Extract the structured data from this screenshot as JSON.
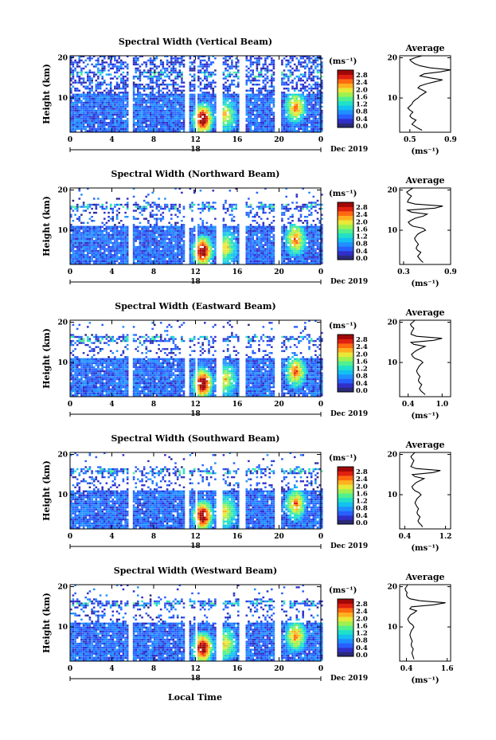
{
  "colors": {
    "palette": [
      "#2a2a7a",
      "#3030c8",
      "#2860ff",
      "#1f90ff",
      "#13c0f0",
      "#20e0c8",
      "#50f090",
      "#a0f050",
      "#e8e838",
      "#ffb020",
      "#ff6a10",
      "#e02010",
      "#a00808"
    ]
  },
  "figure": {
    "xlabel": "Local Time",
    "date_label": "Dec 2019",
    "day_label": "18",
    "unit_label": "(ms⁻¹)",
    "ylabel": "Height (km)",
    "avg_title": "Average"
  },
  "chart_data": [
    {
      "type": "heatmap",
      "title": "Spectral Width (Vertical Beam)",
      "xlabel": "Local Time",
      "ylabel": "Height (km)",
      "x_ticks": [
        "0",
        "4",
        "8",
        "12",
        "16",
        "20",
        "0"
      ],
      "xlim": [
        0,
        24
      ],
      "ylim": [
        1.5,
        20.5
      ],
      "y_ticks": [
        "20",
        "10"
      ],
      "colorbar": {
        "label": "(ms⁻¹)",
        "ticks": [
          "2.8",
          "2.4",
          "2.0",
          "1.6",
          "1.2",
          "0.8",
          "0.4",
          "0.0"
        ],
        "range": [
          0,
          3.0
        ]
      },
      "data_gaps_hours": [
        [
          5.5,
          6.0
        ],
        [
          10.9,
          11.3
        ],
        [
          11.8,
          12.0
        ],
        [
          13.9,
          14.4
        ],
        [
          16.1,
          16.6
        ],
        [
          19.5,
          20.0
        ]
      ],
      "hotspots": [
        {
          "t": 12.6,
          "h": 4.5,
          "value": 2.8
        },
        {
          "t": 14.8,
          "h": 5.5,
          "value": 1.4
        },
        {
          "t": 21.5,
          "h": 7.5,
          "value": 1.8
        }
      ],
      "top_km": 20,
      "average": {
        "title": "Average",
        "xlabel": "(ms⁻¹)",
        "x_ticks": [
          "0.5",
          "0.9"
        ],
        "xlim": [
          0.4,
          0.9
        ],
        "y_ticks": [
          "20",
          "10"
        ],
        "x": [
          0.62,
          0.58,
          0.55,
          0.52,
          0.54,
          0.56,
          0.52,
          0.5,
          0.51,
          0.53,
          0.5,
          0.48,
          0.5,
          0.52,
          0.53,
          0.55,
          0.58,
          0.6,
          0.63,
          0.66,
          0.62,
          0.58,
          0.6,
          0.66,
          0.74,
          0.82,
          0.7,
          0.6,
          0.64,
          0.8,
          0.9,
          0.7,
          0.6,
          0.55,
          0.52,
          0.5,
          0.55,
          0.62
        ],
        "y": [
          2,
          2.5,
          3,
          3.5,
          4,
          4.5,
          5,
          5.5,
          6,
          6.5,
          7,
          7.5,
          8,
          8.5,
          9,
          9.5,
          10,
          10.5,
          11,
          11.5,
          12,
          12.5,
          13,
          13.5,
          14,
          14.5,
          15,
          15.5,
          16,
          16.5,
          17,
          17.5,
          18,
          18.5,
          19,
          19.5,
          20,
          20.5
        ]
      }
    },
    {
      "type": "heatmap",
      "title": "Spectral Width (Northward Beam)",
      "xlabel": "Local Time",
      "ylabel": "Height (km)",
      "x_ticks": [
        "0",
        "4",
        "8",
        "12",
        "16",
        "20",
        "0"
      ],
      "xlim": [
        0,
        24
      ],
      "ylim": [
        1.5,
        20.5
      ],
      "y_ticks": [
        "20",
        "10"
      ],
      "colorbar": {
        "label": "(ms⁻¹)",
        "ticks": [
          "2.8",
          "2.4",
          "2.0",
          "1.6",
          "1.2",
          "0.8",
          "0.4",
          "0.0"
        ],
        "range": [
          0,
          3.0
        ]
      },
      "data_gaps_hours": [
        [
          5.5,
          6.0
        ],
        [
          10.9,
          11.3
        ],
        [
          11.8,
          12.0
        ],
        [
          13.9,
          14.4
        ],
        [
          16.1,
          16.6
        ],
        [
          19.5,
          20.0
        ]
      ],
      "hotspots": [
        {
          "t": 12.6,
          "h": 4.5,
          "value": 2.8
        },
        {
          "t": 14.8,
          "h": 5.5,
          "value": 1.4
        },
        {
          "t": 21.5,
          "h": 7.5,
          "value": 1.8
        }
      ],
      "top_km": 17,
      "average": {
        "title": "Average",
        "xlabel": "(ms⁻¹)",
        "x_ticks": [
          "0.3",
          "0.9"
        ],
        "xlim": [
          0.25,
          0.9
        ],
        "y_ticks": [
          "20",
          "10"
        ],
        "x": [
          0.55,
          0.52,
          0.5,
          0.48,
          0.5,
          0.52,
          0.48,
          0.46,
          0.47,
          0.49,
          0.47,
          0.45,
          0.44,
          0.46,
          0.48,
          0.52,
          0.58,
          0.55,
          0.42,
          0.38,
          0.36,
          0.4,
          0.45,
          0.55,
          0.6,
          0.4,
          0.35,
          0.7,
          0.8,
          0.45,
          0.35,
          0.36,
          0.38,
          0.4,
          0.36,
          0.34,
          0.38,
          0.42
        ],
        "y": [
          2,
          2.5,
          3,
          3.5,
          4,
          4.5,
          5,
          5.5,
          6,
          6.5,
          7,
          7.5,
          8,
          8.5,
          9,
          9.5,
          10,
          10.5,
          11,
          11.5,
          12,
          12.5,
          13,
          13.5,
          14,
          14.5,
          15,
          15.5,
          16,
          16.5,
          17,
          17.5,
          18,
          18.5,
          19,
          19.5,
          20,
          20.5
        ]
      }
    },
    {
      "type": "heatmap",
      "title": "Spectral Width (Eastward Beam)",
      "xlabel": "Local Time",
      "ylabel": "Height (km)",
      "x_ticks": [
        "0",
        "4",
        "8",
        "12",
        "16",
        "20",
        "0"
      ],
      "xlim": [
        0,
        24
      ],
      "ylim": [
        1.5,
        20.5
      ],
      "y_ticks": [
        "20",
        "10"
      ],
      "colorbar": {
        "label": "(ms⁻¹)",
        "ticks": [
          "2.8",
          "2.4",
          "2.0",
          "1.6",
          "1.2",
          "0.8",
          "0.4",
          "0.0"
        ],
        "range": [
          0,
          3.0
        ]
      },
      "data_gaps_hours": [
        [
          5.5,
          6.0
        ],
        [
          10.9,
          11.3
        ],
        [
          11.8,
          12.0
        ],
        [
          13.9,
          14.4
        ],
        [
          16.1,
          16.6
        ],
        [
          19.5,
          20.0
        ]
      ],
      "hotspots": [
        {
          "t": 12.6,
          "h": 4.5,
          "value": 2.8
        },
        {
          "t": 14.8,
          "h": 5.5,
          "value": 1.4
        },
        {
          "t": 21.5,
          "h": 7.5,
          "value": 1.8
        }
      ],
      "top_km": 17,
      "average": {
        "title": "Average",
        "xlabel": "(ms⁻¹)",
        "x_ticks": [
          "0.4",
          "1.0"
        ],
        "xlim": [
          0.25,
          1.15
        ],
        "y_ticks": [
          "20",
          "10"
        ],
        "x": [
          0.7,
          0.66,
          0.62,
          0.6,
          0.62,
          0.64,
          0.6,
          0.58,
          0.59,
          0.61,
          0.58,
          0.56,
          0.55,
          0.57,
          0.59,
          0.62,
          0.66,
          0.62,
          0.52,
          0.48,
          0.46,
          0.5,
          0.55,
          0.62,
          0.7,
          0.5,
          0.45,
          0.85,
          1.0,
          0.55,
          0.45,
          0.46,
          0.48,
          0.5,
          0.46,
          0.44,
          0.48,
          0.52
        ],
        "y": [
          2,
          2.5,
          3,
          3.5,
          4,
          4.5,
          5,
          5.5,
          6,
          6.5,
          7,
          7.5,
          8,
          8.5,
          9,
          9.5,
          10,
          10.5,
          11,
          11.5,
          12,
          12.5,
          13,
          13.5,
          14,
          14.5,
          15,
          15.5,
          16,
          16.5,
          17,
          17.5,
          18,
          18.5,
          19,
          19.5,
          20,
          20.5
        ]
      }
    },
    {
      "type": "heatmap",
      "title": "Spectral Width (Southward Beam)",
      "xlabel": "Local Time",
      "ylabel": "Height (km)",
      "x_ticks": [
        "0",
        "4",
        "8",
        "12",
        "16",
        "20",
        "0"
      ],
      "xlim": [
        0,
        24
      ],
      "ylim": [
        1.5,
        20.5
      ],
      "y_ticks": [
        "20",
        "10"
      ],
      "colorbar": {
        "label": "(ms⁻¹)",
        "ticks": [
          "2.8",
          "2.4",
          "2.0",
          "1.6",
          "1.2",
          "0.8",
          "0.4",
          "0.0"
        ],
        "range": [
          0,
          3.0
        ]
      },
      "data_gaps_hours": [
        [
          5.5,
          6.0
        ],
        [
          10.9,
          11.3
        ],
        [
          11.8,
          12.0
        ],
        [
          13.9,
          14.4
        ],
        [
          16.1,
          16.6
        ],
        [
          19.5,
          20.0
        ]
      ],
      "hotspots": [
        {
          "t": 12.6,
          "h": 4.5,
          "value": 2.8
        },
        {
          "t": 14.8,
          "h": 5.5,
          "value": 1.4
        },
        {
          "t": 21.5,
          "h": 7.5,
          "value": 1.8
        }
      ],
      "top_km": 17,
      "average": {
        "title": "Average",
        "xlabel": "(ms⁻¹)",
        "x_ticks": [
          "0.4",
          "1.2"
        ],
        "xlim": [
          0.3,
          1.3
        ],
        "y_ticks": [
          "20",
          "10"
        ],
        "x": [
          0.75,
          0.72,
          0.68,
          0.66,
          0.68,
          0.7,
          0.66,
          0.64,
          0.65,
          0.67,
          0.64,
          0.62,
          0.6,
          0.62,
          0.64,
          0.68,
          0.72,
          0.68,
          0.6,
          0.56,
          0.54,
          0.58,
          0.62,
          0.7,
          0.78,
          0.6,
          0.55,
          0.95,
          1.1,
          0.62,
          0.52,
          0.54,
          0.56,
          0.58,
          0.54,
          0.52,
          0.56,
          0.6
        ],
        "y": [
          2,
          2.5,
          3,
          3.5,
          4,
          4.5,
          5,
          5.5,
          6,
          6.5,
          7,
          7.5,
          8,
          8.5,
          9,
          9.5,
          10,
          10.5,
          11,
          11.5,
          12,
          12.5,
          13,
          13.5,
          14,
          14.5,
          15,
          15.5,
          16,
          16.5,
          17,
          17.5,
          18,
          18.5,
          19,
          19.5,
          20,
          20.5
        ]
      }
    },
    {
      "type": "heatmap",
      "title": "Spectral Width (Westward Beam)",
      "xlabel": "Local Time",
      "ylabel": "Height (km)",
      "x_ticks": [
        "0",
        "4",
        "8",
        "12",
        "16",
        "20",
        "0"
      ],
      "xlim": [
        0,
        24
      ],
      "ylim": [
        1.5,
        20.5
      ],
      "y_ticks": [
        "20",
        "10"
      ],
      "colorbar": {
        "label": "(ms⁻¹)",
        "ticks": [
          "2.8",
          "2.4",
          "2.0",
          "1.6",
          "1.2",
          "0.8",
          "0.4",
          "0.0"
        ],
        "range": [
          0,
          3.0
        ]
      },
      "data_gaps_hours": [
        [
          5.5,
          6.0
        ],
        [
          10.9,
          11.3
        ],
        [
          11.8,
          12.0
        ],
        [
          13.9,
          14.4
        ],
        [
          16.1,
          16.6
        ],
        [
          19.5,
          20.0
        ]
      ],
      "hotspots": [
        {
          "t": 12.6,
          "h": 4.5,
          "value": 2.8
        },
        {
          "t": 14.8,
          "h": 5.5,
          "value": 1.4
        },
        {
          "t": 21.5,
          "h": 7.5,
          "value": 1.8
        }
      ],
      "top_km": 17,
      "average": {
        "title": "Average",
        "xlabel": "(ms⁻¹)",
        "x_ticks": [
          "0.4",
          "1.6"
        ],
        "xlim": [
          0.2,
          1.7
        ],
        "y_ticks": [
          "20",
          "10"
        ],
        "x": [
          0.62,
          0.6,
          0.58,
          0.56,
          0.58,
          0.6,
          0.56,
          0.54,
          0.55,
          0.57,
          0.54,
          0.52,
          0.5,
          0.52,
          0.54,
          0.58,
          0.62,
          0.58,
          0.5,
          0.46,
          0.44,
          0.48,
          0.52,
          0.62,
          0.7,
          0.5,
          0.55,
          1.2,
          1.55,
          0.8,
          0.5,
          0.42,
          0.4,
          0.42,
          0.38,
          0.36,
          0.4,
          0.44
        ],
        "y": [
          2,
          2.5,
          3,
          3.5,
          4,
          4.5,
          5,
          5.5,
          6,
          6.5,
          7,
          7.5,
          8,
          8.5,
          9,
          9.5,
          10,
          10.5,
          11,
          11.5,
          12,
          12.5,
          13,
          13.5,
          14,
          14.5,
          15,
          15.5,
          16,
          16.5,
          17,
          17.5,
          18,
          18.5,
          19,
          19.5,
          20,
          20.5
        ]
      }
    }
  ]
}
